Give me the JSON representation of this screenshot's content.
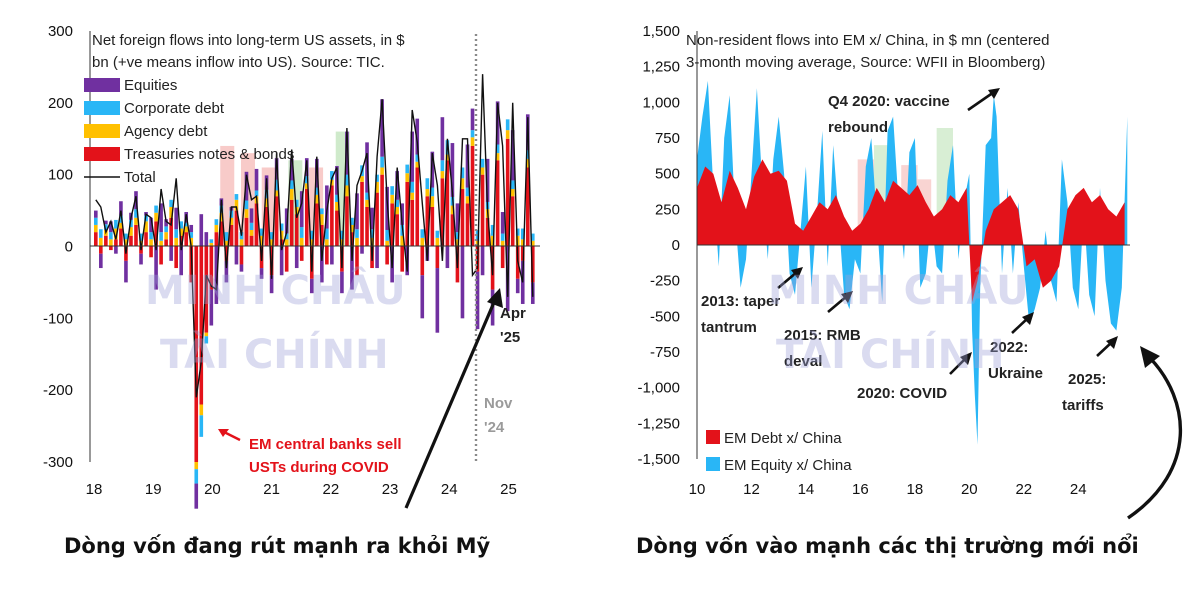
{
  "captions": {
    "left": "Dòng vốn đang rút mạnh ra khỏi Mỹ",
    "right": "Dòng vốn vào mạnh các thị trường mới nổi"
  },
  "watermark": {
    "line1": "MINH CHÂU",
    "line2": "TÀI CHÍNH"
  },
  "colors": {
    "equities": "#7030a0",
    "corporate_debt": "#29b6f6",
    "agency_debt": "#ffc000",
    "treasuries": "#e3121a",
    "total": "#111111",
    "em_debt": "#e3121a",
    "em_equity": "#29b6f6"
  },
  "chart_data": [
    {
      "type": "bar",
      "title_lines": [
        "Net foreign flows into long-term US assets, in $",
        "bn (+ve means inflow into US). Source: TIC."
      ],
      "ylim": [
        -300,
        300
      ],
      "yticks": [
        300,
        200,
        100,
        0,
        -100,
        -200,
        -300
      ],
      "xlim": [
        2018,
        2025.6
      ],
      "xticks": [
        {
          "label": "18",
          "x": 2018
        },
        {
          "label": "19",
          "x": 2019
        },
        {
          "label": "20",
          "x": 2020
        },
        {
          "label": "21",
          "x": 2021
        },
        {
          "label": "22",
          "x": 2022
        },
        {
          "label": "23",
          "x": 2023
        },
        {
          "label": "24",
          "x": 2024
        },
        {
          "label": "25",
          "x": 2025
        }
      ],
      "legend": [
        {
          "name": "Equities",
          "key": "equities",
          "kind": "box"
        },
        {
          "name": "Corporate debt",
          "key": "corporate_debt",
          "kind": "box"
        },
        {
          "name": "Agency debt",
          "key": "agency_debt",
          "kind": "box"
        },
        {
          "name": "Treasuries notes & bonds",
          "key": "treasuries",
          "kind": "box"
        },
        {
          "name": "Total",
          "key": "total",
          "kind": "line"
        }
      ],
      "series": [
        {
          "name": "Equities",
          "key": "equities",
          "values": [
            10,
            -20,
            5,
            15,
            -10,
            20,
            -30,
            10,
            25,
            -15,
            5,
            20,
            -60,
            40,
            10,
            -20,
            30,
            -40,
            15,
            10,
            -35,
            45,
            20,
            -50,
            -80,
            10,
            -30,
            5,
            -25,
            -10,
            40,
            20,
            30,
            -15,
            20,
            -25,
            30,
            -40,
            35,
            30,
            -30,
            50,
            25,
            -20,
            40,
            -50,
            60,
            -25,
            40,
            -30,
            60,
            -60,
            50,
            -10,
            70,
            30,
            -30,
            80,
            60,
            -50,
            40,
            30,
            -40,
            70,
            50,
            -60,
            -20,
            50,
            -90,
            60,
            -30,
            75,
            40,
            -100,
            60,
            30,
            -80,
            -40,
            60,
            -50,
            60,
            30,
            -90,
            70,
            -20,
            -60,
            50,
            -30
          ]
        },
        {
          "name": "Corporate debt",
          "key": "corporate_debt",
          "values": [
            10,
            12,
            8,
            10,
            12,
            10,
            8,
            10,
            12,
            10,
            8,
            10,
            10,
            12,
            8,
            10,
            12,
            10,
            5,
            8,
            -20,
            -30,
            -10,
            5,
            8,
            10,
            12,
            10,
            8,
            10,
            12,
            10,
            8,
            10,
            12,
            10,
            15,
            10,
            8,
            12,
            10,
            15,
            10,
            12,
            10,
            8,
            15,
            12,
            10,
            12,
            15,
            10,
            12,
            15,
            10,
            12,
            10,
            15,
            15,
            12,
            10,
            15,
            12,
            15,
            10,
            12,
            15,
            12,
            10,
            15,
            20,
            12,
            10,
            15,
            12,
            10,
            15,
            12,
            10,
            15,
            12,
            10,
            15,
            12,
            10,
            15,
            12,
            10
          ]
        },
        {
          "name": "Agency debt",
          "key": "agency_debt",
          "values": [
            10,
            12,
            8,
            10,
            15,
            8,
            10,
            12,
            10,
            8,
            15,
            10,
            12,
            8,
            10,
            15,
            12,
            10,
            8,
            12,
            -10,
            -15,
            -5,
            5,
            10,
            12,
            8,
            10,
            15,
            10,
            12,
            8,
            10,
            15,
            12,
            10,
            8,
            12,
            10,
            15,
            10,
            12,
            8,
            10,
            12,
            15,
            10,
            8,
            12,
            10,
            15,
            10,
            12,
            8,
            10,
            12,
            15,
            10,
            8,
            12,
            10,
            15,
            12,
            10,
            8,
            12,
            10,
            15,
            12,
            10,
            8,
            12,
            10,
            15,
            10,
            12,
            8,
            10,
            12,
            15,
            10,
            8,
            12,
            10,
            15,
            10,
            12,
            8
          ]
        },
        {
          "name": "Treasuries notes & bonds",
          "key": "treasuries",
          "values": [
            20,
            -10,
            15,
            -5,
            10,
            25,
            -20,
            15,
            30,
            -10,
            20,
            -15,
            35,
            -25,
            10,
            40,
            -30,
            15,
            20,
            -50,
            -300,
            -220,
            -120,
            -60,
            20,
            35,
            -20,
            30,
            50,
            -25,
            40,
            15,
            60,
            -30,
            55,
            -40,
            70,
            10,
            -35,
            65,
            45,
            -20,
            80,
            -45,
            60,
            30,
            -25,
            85,
            50,
            -35,
            70,
            20,
            -40,
            90,
            55,
            -30,
            75,
            100,
            -25,
            60,
            45,
            -35,
            90,
            65,
            110,
            -40,
            70,
            55,
            -30,
            95,
            120,
            45,
            -50,
            80,
            60,
            140,
            -35,
            100,
            40,
            -60,
            120,
            -30,
            150,
            70,
            -45,
            -20,
            110,
            -50
          ]
        },
        {
          "name": "Total",
          "key": "total",
          "values": [
            65,
            55,
            20,
            35,
            10,
            50,
            -10,
            40,
            70,
            -5,
            45,
            40,
            -5,
            80,
            35,
            30,
            95,
            -5,
            45,
            0,
            -210,
            -160,
            -40,
            -55,
            -60,
            65,
            -30,
            55,
            55,
            15,
            100,
            65,
            70,
            -20,
            95,
            -45,
            130,
            -5,
            20,
            135,
            40,
            60,
            120,
            -35,
            125,
            -20,
            50,
            95,
            110,
            -30,
            165,
            -20,
            85,
            105,
            130,
            -20,
            125,
            205,
            65,
            -30,
            110,
            30,
            -35,
            190,
            145,
            60,
            -20,
            130,
            85,
            -20,
            150,
            75,
            -30,
            150,
            150,
            -40,
            -30,
            240,
            50,
            -40,
            200,
            140,
            -70,
            200,
            -20,
            -50,
            180,
            -70
          ]
        }
      ],
      "annotations": {
        "covid": "EM central banks sell",
        "covid_line2": "USTs during COVID",
        "nov": "Nov",
        "nov_line2": "'24",
        "apr": "Apr",
        "apr_line2": "'25"
      }
    },
    {
      "type": "area",
      "title_lines": [
        "Non-resident flows into EM x/ China, in $ mn (centered",
        "3-month moving average, Source: WFII in Bloomberg)"
      ],
      "ylim": [
        -1500,
        1500
      ],
      "yticks": [
        1500,
        1250,
        1000,
        750,
        500,
        250,
        0,
        -250,
        -500,
        -750,
        -1000,
        -1250,
        -1500
      ],
      "xlim": [
        2010,
        2025.9
      ],
      "xticks": [
        {
          "label": "10",
          "x": 2010
        },
        {
          "label": "12",
          "x": 2012
        },
        {
          "label": "14",
          "x": 2014
        },
        {
          "label": "16",
          "x": 2016
        },
        {
          "label": "18",
          "x": 2018
        },
        {
          "label": "20",
          "x": 2020
        },
        {
          "label": "22",
          "x": 2022
        },
        {
          "label": "24",
          "x": 2024
        }
      ],
      "legend": [
        {
          "name": "EM Debt x/ China",
          "key": "em_debt"
        },
        {
          "name": "EM Equity x/ China",
          "key": "em_equity"
        }
      ],
      "series": [
        {
          "name": "EM Debt x/ China",
          "key": "em_debt",
          "x": [
            2010.0,
            2010.3,
            2010.6,
            2010.9,
            2011.2,
            2011.5,
            2011.8,
            2012.1,
            2012.4,
            2012.7,
            2013.0,
            2013.3,
            2013.6,
            2013.9,
            2014.2,
            2014.5,
            2014.8,
            2015.1,
            2015.4,
            2015.7,
            2016.0,
            2016.3,
            2016.6,
            2016.9,
            2017.2,
            2017.5,
            2017.8,
            2018.1,
            2018.4,
            2018.7,
            2019.0,
            2019.3,
            2019.6,
            2019.9,
            2020.1,
            2020.3,
            2020.6,
            2020.9,
            2021.2,
            2021.5,
            2021.8,
            2022.1,
            2022.4,
            2022.7,
            2023.0,
            2023.3,
            2023.6,
            2023.9,
            2024.2,
            2024.5,
            2024.8,
            2025.1,
            2025.4,
            2025.7
          ],
          "values": [
            400,
            550,
            500,
            300,
            520,
            400,
            250,
            480,
            600,
            500,
            520,
            450,
            150,
            100,
            200,
            300,
            250,
            350,
            200,
            100,
            150,
            250,
            400,
            300,
            450,
            400,
            350,
            420,
            300,
            200,
            250,
            350,
            300,
            400,
            -400,
            -250,
            100,
            250,
            300,
            350,
            250,
            -150,
            -100,
            -300,
            -250,
            -150,
            250,
            350,
            400,
            300,
            350,
            250,
            200,
            300
          ]
        },
        {
          "name": "EM Equity x/ China",
          "key": "em_equity",
          "x": [
            2010.0,
            2010.2,
            2010.4,
            2010.6,
            2010.8,
            2011.0,
            2011.2,
            2011.4,
            2011.6,
            2011.8,
            2012.0,
            2012.2,
            2012.4,
            2012.6,
            2012.8,
            2013.0,
            2013.2,
            2013.4,
            2013.6,
            2013.8,
            2014.0,
            2014.2,
            2014.4,
            2014.6,
            2014.8,
            2015.0,
            2015.2,
            2015.4,
            2015.6,
            2015.8,
            2016.0,
            2016.2,
            2016.4,
            2016.6,
            2016.8,
            2017.0,
            2017.2,
            2017.4,
            2017.6,
            2017.8,
            2018.0,
            2018.2,
            2018.4,
            2018.6,
            2018.8,
            2019.0,
            2019.2,
            2019.4,
            2019.6,
            2019.8,
            2020.0,
            2020.1,
            2020.2,
            2020.3,
            2020.4,
            2020.6,
            2020.8,
            2020.9,
            2021.0,
            2021.2,
            2021.4,
            2021.6,
            2021.8,
            2022.0,
            2022.2,
            2022.4,
            2022.6,
            2022.8,
            2023.0,
            2023.2,
            2023.4,
            2023.6,
            2023.8,
            2024.0,
            2024.2,
            2024.4,
            2024.6,
            2024.8,
            2025.0,
            2025.2,
            2025.4,
            2025.6,
            2025.8
          ],
          "values": [
            600,
            900,
            1150,
            400,
            -150,
            750,
            1050,
            200,
            -300,
            -100,
            500,
            1100,
            400,
            -100,
            600,
            900,
            500,
            -200,
            -350,
            100,
            550,
            -300,
            200,
            800,
            -150,
            700,
            200,
            -350,
            -450,
            -100,
            -200,
            550,
            750,
            200,
            -400,
            800,
            900,
            300,
            -100,
            650,
            750,
            -300,
            -200,
            200,
            -150,
            -200,
            450,
            700,
            -100,
            300,
            500,
            -600,
            -1050,
            -1400,
            -300,
            700,
            750,
            1050,
            900,
            -200,
            400,
            -200,
            300,
            -150,
            -550,
            -450,
            -300,
            100,
            -250,
            -400,
            600,
            300,
            -300,
            -450,
            250,
            -350,
            -500,
            400,
            -250,
            -550,
            -600,
            -300,
            900
          ]
        }
      ],
      "annotations": {
        "vaccine": "Q4 2020: vaccine",
        "vaccine_line2": "rebound",
        "taper": "2013: taper",
        "taper_line2": "tantrum",
        "rmb": "2015: RMB",
        "rmb_line2": "deval",
        "covid": "2020: COVID",
        "ukraine": "2022:",
        "ukraine_line2": "Ukraine",
        "tariffs": "2025:",
        "tariffs_line2": "tariffs"
      }
    }
  ]
}
